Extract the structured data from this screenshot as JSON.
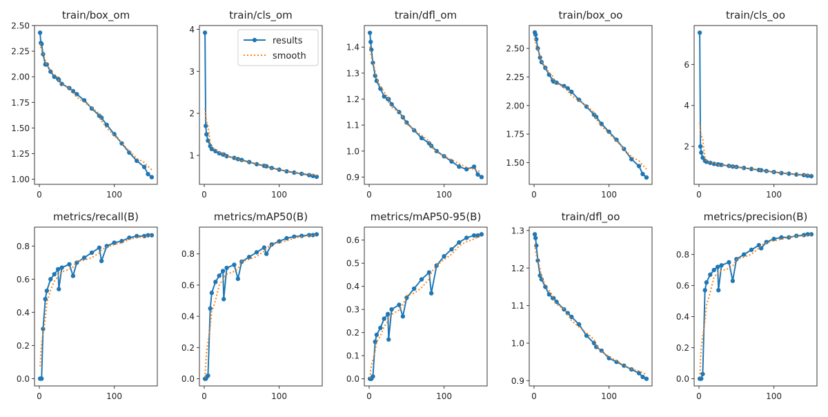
{
  "chart_data": [
    {
      "type": "line",
      "title": "train/box_om",
      "ylim": [
        0.95,
        2.5
      ],
      "yticks": [
        1.0,
        1.25,
        1.5,
        1.75,
        2.0,
        2.25,
        2.5
      ],
      "ytick_labels": [
        "1.00",
        "1.25",
        "1.50",
        "1.75",
        "2.00",
        "2.25",
        "2.50"
      ],
      "values": [
        2.43,
        2.33,
        2.32,
        2.22,
        2.12,
        2.12,
        2.05,
        2.0,
        1.98,
        1.97,
        1.93,
        1.89,
        1.86,
        1.83,
        1.77,
        1.69,
        1.62,
        1.6,
        1.53,
        1.44,
        1.35,
        1.26,
        1.18,
        1.12,
        1.05,
        1.02
      ]
    },
    {
      "type": "line",
      "title": "train/cls_om",
      "ylim": [
        0.31,
        4.09
      ],
      "yticks": [
        1,
        2,
        3,
        4
      ],
      "ytick_labels": [
        "1",
        "2",
        "3",
        "4"
      ],
      "legend": true,
      "values": [
        3.92,
        1.7,
        1.5,
        1.35,
        1.22,
        1.15,
        1.1,
        1.05,
        1.02,
        1.02,
        0.98,
        0.94,
        0.91,
        0.89,
        0.84,
        0.79,
        0.75,
        0.74,
        0.7,
        0.66,
        0.62,
        0.59,
        0.56,
        0.53,
        0.51,
        0.49
      ]
    },
    {
      "type": "line",
      "title": "train/dfl_om",
      "ylim": [
        0.872,
        1.483
      ],
      "yticks": [
        0.9,
        1.0,
        1.1,
        1.2,
        1.3,
        1.4
      ],
      "ytick_labels": [
        "0.9",
        "1.0",
        "1.1",
        "1.2",
        "1.3",
        "1.4"
      ],
      "values": [
        1.455,
        1.42,
        1.39,
        1.34,
        1.29,
        1.27,
        1.24,
        1.21,
        1.2,
        1.2,
        1.18,
        1.15,
        1.13,
        1.11,
        1.08,
        1.05,
        1.03,
        1.02,
        1.0,
        0.98,
        0.96,
        0.94,
        0.93,
        0.94,
        0.91,
        0.9
      ]
    },
    {
      "type": "line",
      "title": "train/box_oo",
      "ylim": [
        1.31,
        2.7
      ],
      "yticks": [
        1.5,
        1.75,
        2.0,
        2.25,
        2.5
      ],
      "ytick_labels": [
        "1.50",
        "1.75",
        "2.00",
        "2.25",
        "2.50"
      ],
      "values": [
        2.64,
        2.62,
        2.58,
        2.5,
        2.42,
        2.38,
        2.33,
        2.27,
        2.22,
        2.21,
        2.2,
        2.17,
        2.15,
        2.12,
        2.05,
        1.99,
        1.92,
        1.9,
        1.84,
        1.77,
        1.7,
        1.62,
        1.53,
        1.47,
        1.4,
        1.37
      ]
    },
    {
      "type": "line",
      "title": "train/cls_oo",
      "ylim": [
        0.15,
        7.9
      ],
      "yticks": [
        2,
        4,
        6
      ],
      "ytick_labels": [
        "2",
        "4",
        "6"
      ],
      "values": [
        7.55,
        2.0,
        1.7,
        1.45,
        1.3,
        1.25,
        1.2,
        1.15,
        1.12,
        1.12,
        1.1,
        1.05,
        1.02,
        1.0,
        0.95,
        0.9,
        0.85,
        0.84,
        0.8,
        0.75,
        0.7,
        0.67,
        0.63,
        0.6,
        0.57,
        0.55
      ]
    },
    {
      "type": "line",
      "title": "metrics/recall(B)",
      "ylim": [
        -0.044,
        0.914
      ],
      "yticks": [
        0,
        0.2,
        0.4,
        0.6,
        0.8
      ],
      "ytick_labels": [
        "0.0",
        "0.2",
        "0.4",
        "0.6",
        "0.8"
      ],
      "values": [
        0,
        0,
        0,
        0.3,
        0.48,
        0.53,
        0.6,
        0.63,
        0.66,
        0.54,
        0.67,
        0.69,
        0.62,
        0.7,
        0.73,
        0.76,
        0.79,
        0.71,
        0.8,
        0.82,
        0.83,
        0.85,
        0.86,
        0.86,
        0.865,
        0.865
      ]
    },
    {
      "type": "line",
      "title": "metrics/mAP50(B)",
      "ylim": [
        -0.046,
        0.971
      ],
      "yticks": [
        0,
        0.2,
        0.4,
        0.6,
        0.8
      ],
      "ytick_labels": [
        "0.0",
        "0.2",
        "0.4",
        "0.6",
        "0.8"
      ],
      "values": [
        0,
        0,
        0.01,
        0.02,
        0.45,
        0.55,
        0.62,
        0.66,
        0.69,
        0.51,
        0.71,
        0.73,
        0.64,
        0.75,
        0.78,
        0.81,
        0.84,
        0.8,
        0.86,
        0.88,
        0.9,
        0.91,
        0.915,
        0.92,
        0.92,
        0.925
      ]
    },
    {
      "type": "line",
      "title": "metrics/mAP50-95(B)",
      "ylim": [
        -0.031,
        0.656
      ],
      "yticks": [
        0,
        0.1,
        0.2,
        0.3,
        0.4,
        0.5,
        0.6
      ],
      "ytick_labels": [
        "0.0",
        "0.1",
        "0.2",
        "0.3",
        "0.4",
        "0.5",
        "0.6"
      ],
      "values": [
        0,
        0,
        0,
        0.01,
        0.16,
        0.19,
        0.22,
        0.26,
        0.28,
        0.17,
        0.3,
        0.32,
        0.27,
        0.35,
        0.39,
        0.43,
        0.46,
        0.37,
        0.49,
        0.53,
        0.56,
        0.59,
        0.61,
        0.62,
        0.62,
        0.625
      ]
    },
    {
      "type": "line",
      "title": "train/dfl_oo",
      "ylim": [
        0.886,
        1.309
      ],
      "yticks": [
        0.9,
        1.0,
        1.1,
        1.2,
        1.3
      ],
      "ytick_labels": [
        "0.9",
        "1.0",
        "1.1",
        "1.2",
        "1.3"
      ],
      "values": [
        1.29,
        1.28,
        1.26,
        1.22,
        1.18,
        1.17,
        1.15,
        1.13,
        1.12,
        1.12,
        1.11,
        1.09,
        1.08,
        1.07,
        1.05,
        1.02,
        1.0,
        0.99,
        0.98,
        0.96,
        0.95,
        0.94,
        0.93,
        0.92,
        0.91,
        0.905
      ]
    },
    {
      "type": "line",
      "title": "metrics/precision(B)",
      "ylim": [
        -0.0465,
        0.976
      ],
      "yticks": [
        0,
        0.2,
        0.4,
        0.6,
        0.8
      ],
      "ytick_labels": [
        "0.0",
        "0.2",
        "0.4",
        "0.6",
        "0.8"
      ],
      "values": [
        0,
        0,
        0,
        0.03,
        0.57,
        0.62,
        0.67,
        0.7,
        0.72,
        0.57,
        0.73,
        0.75,
        0.63,
        0.77,
        0.8,
        0.83,
        0.86,
        0.84,
        0.88,
        0.9,
        0.91,
        0.91,
        0.92,
        0.925,
        0.93,
        0.93
      ]
    }
  ],
  "shared": {
    "x": [
      1,
      2,
      3,
      5,
      8,
      10,
      15,
      20,
      25,
      26,
      30,
      40,
      45,
      50,
      60,
      70,
      80,
      83,
      90,
      100,
      110,
      120,
      130,
      140,
      145,
      150
    ],
    "xlim": [
      -6.45,
      157.45
    ],
    "xticks": [
      0,
      100
    ],
    "xtick_labels": [
      "0",
      "100"
    ],
    "legend": {
      "entries": [
        "results",
        "smooth"
      ],
      "placement": "upper right"
    },
    "colors": {
      "results": "#1f77b4",
      "smooth": "#ff7f0e"
    },
    "grid": false
  }
}
